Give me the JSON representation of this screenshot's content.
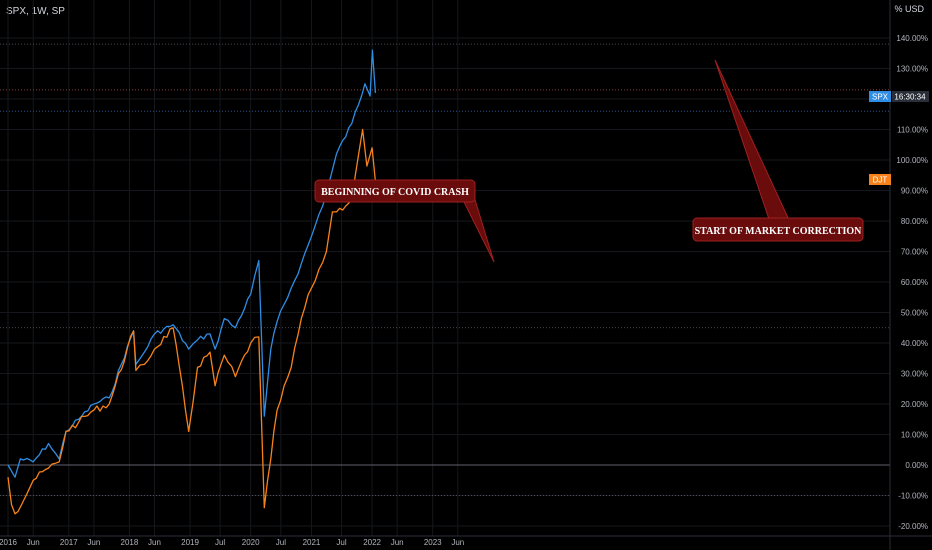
{
  "header": {
    "symbol": "SPX, 1W, SP",
    "currency": "% USD"
  },
  "colors": {
    "spx": "#2f8de4",
    "djt": "#f7821b",
    "callout_fill": "#6a0c0c",
    "callout_border": "#a02020"
  },
  "chart_data": {
    "type": "line",
    "ylim": [
      -22,
      150
    ],
    "y_ticks": [
      "140.00%",
      "130.00%",
      "120.00%",
      "110.00%",
      "100.00%",
      "90.00%",
      "80.00%",
      "70.00%",
      "60.00%",
      "50.00%",
      "40.00%",
      "30.00%",
      "20.00%",
      "10.00%",
      "0.00%",
      "-10.00%",
      "-20.00%"
    ],
    "x_ticks": [
      "2016",
      "Jun",
      "2017",
      "Jun",
      "2018",
      "Jun",
      "2019",
      "Jul",
      "2020",
      "Jul",
      "2021",
      "Jul",
      "2022",
      "Jun",
      "2023",
      "Jun"
    ],
    "x_tick_dates": [
      "2016-01-01",
      "2016-06-01",
      "2017-01-01",
      "2017-06-01",
      "2018-01-01",
      "2018-06-01",
      "2019-01-01",
      "2019-07-01",
      "2020-01-01",
      "2020-07-01",
      "2021-01-01",
      "2021-07-01",
      "2022-01-01",
      "2022-06-01",
      "2023-01-01",
      "2023-06-01"
    ],
    "series": [
      {
        "name": "SPX",
        "x": [
          "2016-01-01",
          "2016-02-12",
          "2016-03-15",
          "2016-06-01",
          "2016-09-01",
          "2016-11-04",
          "2016-12-15",
          "2017-03-01",
          "2017-06-01",
          "2017-09-01",
          "2018-01-26",
          "2018-02-09",
          "2018-04-01",
          "2018-06-01",
          "2018-09-21",
          "2018-12-24",
          "2019-02-15",
          "2019-05-01",
          "2019-06-01",
          "2019-07-26",
          "2019-10-01",
          "2020-01-01",
          "2020-02-19",
          "2020-03-23",
          "2020-05-01",
          "2020-06-08",
          "2020-09-01",
          "2020-11-01",
          "2021-01-01",
          "2021-04-01",
          "2021-06-01",
          "2021-09-01",
          "2021-11-19",
          "2021-12-20",
          "2022-01-03",
          "2022-01-21"
        ],
        "values": [
          0,
          -4,
          2,
          1,
          7,
          2,
          11,
          15,
          20,
          22,
          44,
          33,
          37,
          43,
          46,
          38,
          41,
          43,
          38,
          48,
          45,
          56,
          67,
          16,
          38,
          47,
          58,
          66,
          75,
          89,
          102,
          112,
          125,
          121,
          136,
          122
        ]
      },
      {
        "name": "DJT",
        "x": [
          "2016-01-01",
          "2016-01-22",
          "2016-02-12",
          "2016-06-01",
          "2016-09-01",
          "2016-11-04",
          "2016-12-15",
          "2017-03-01",
          "2017-06-01",
          "2017-09-01",
          "2018-01-26",
          "2018-02-09",
          "2018-04-01",
          "2018-06-01",
          "2018-09-21",
          "2018-12-24",
          "2019-02-15",
          "2019-05-01",
          "2019-06-01",
          "2019-07-26",
          "2019-10-01",
          "2020-01-01",
          "2020-02-19",
          "2020-03-23",
          "2020-05-01",
          "2020-06-08",
          "2020-09-01",
          "2020-11-01",
          "2021-01-01",
          "2021-04-01",
          "2021-05-07",
          "2021-06-01",
          "2021-09-01",
          "2021-11-05",
          "2021-12-01",
          "2022-01-01",
          "2022-01-21"
        ],
        "values": [
          -4,
          -13,
          -16,
          -5,
          -1,
          1,
          11,
          14,
          18,
          20,
          44,
          31,
          33,
          38,
          45,
          11,
          32,
          37,
          26,
          36,
          29,
          40,
          42,
          -14,
          2,
          18,
          32,
          48,
          58,
          70,
          83,
          83,
          87,
          110,
          98,
          104,
          93
        ]
      }
    ]
  },
  "price_badges": [
    {
      "symbol": "SPX",
      "time": "16:30:34"
    },
    {
      "symbol": "DJT"
    }
  ],
  "annotations": {
    "covid": "BEGINNING OF COVID CRASH",
    "correction": "START OF MARKET CORRECTION"
  }
}
